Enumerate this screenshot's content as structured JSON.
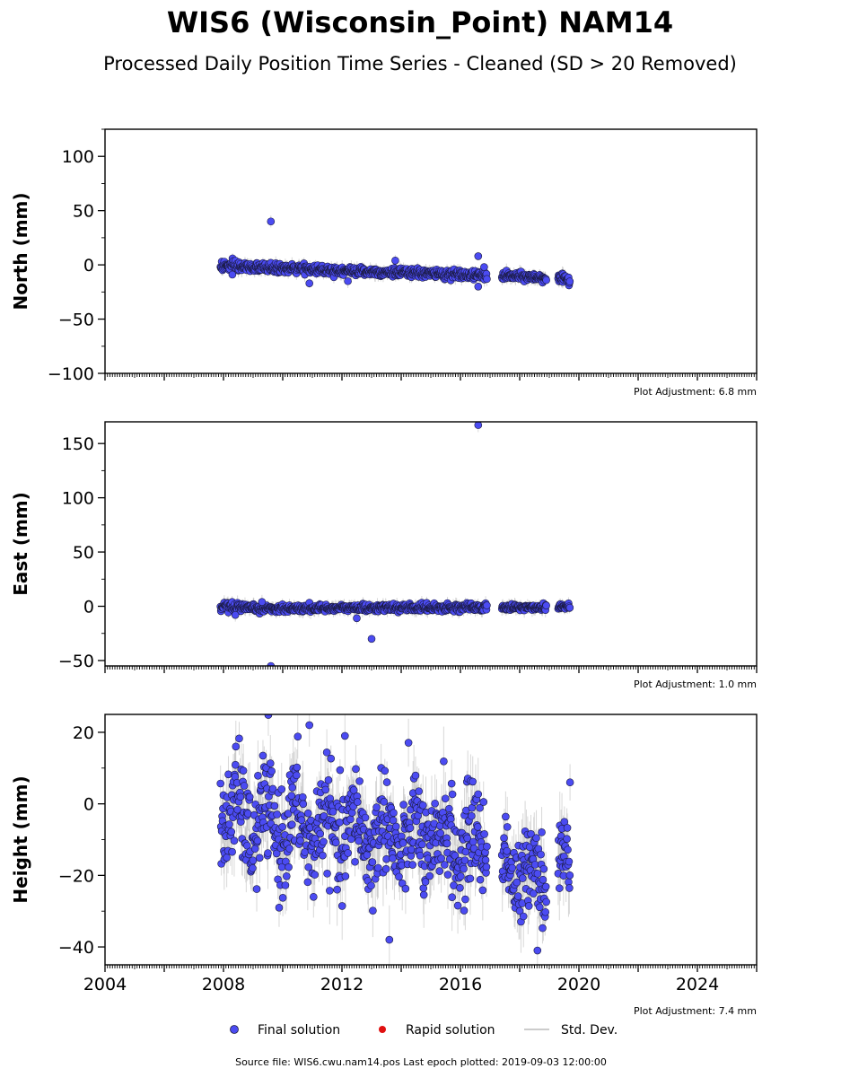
{
  "header": {
    "title": "WIS6 (Wisconsin_Point) NAM14",
    "subtitle": "Processed Daily Position Time Series - Cleaned (SD > 20 Removed)"
  },
  "footer": {
    "source": "Source file: WIS6.cwu.nam14.pos  Last epoch plotted: 2019-09-03 12:00:00"
  },
  "legend": {
    "position": "bottom-center",
    "items": [
      {
        "label": "Final solution",
        "color": "#4b4bf2",
        "marker": "circle"
      },
      {
        "label": "Rapid solution",
        "color": "#e01010",
        "marker": "circle"
      },
      {
        "label": "Std. Dev.",
        "color": "#bbbbbb",
        "marker": "line"
      }
    ]
  },
  "colors": {
    "final_fill": "#4b4bf2",
    "final_edge": "#1a1a40",
    "stddev": "#b8b8b8",
    "rapid": "#e01010"
  },
  "chart_data": [
    {
      "type": "scatter",
      "ylabel": "North (mm)",
      "xlim": [
        2004,
        2026
      ],
      "ylim": [
        -100,
        125
      ],
      "yticks": [
        -100,
        -50,
        0,
        50,
        100
      ],
      "xticks": [
        2004,
        2008,
        2012,
        2016,
        2020,
        2024
      ],
      "show_xtick_labels": false,
      "adjustment": "Plot Adjustment: 6.8 mm",
      "series": [
        {
          "segments": [
            {
              "start": 2007.9,
              "end": 2008.8,
              "y0": -1,
              "y1": -2,
              "noise": 2.5
            },
            {
              "start": 2008.8,
              "end": 2016.9,
              "y0": -2,
              "y1": -10,
              "noise": 2.0
            },
            {
              "start": 2017.4,
              "end": 2018.9,
              "y0": -10,
              "y1": -12,
              "noise": 1.8
            },
            {
              "start": 2019.3,
              "end": 2019.7,
              "y0": -13,
              "y1": -14,
              "noise": 2.0
            }
          ],
          "sd": 4,
          "outliers": [
            [
              2009.6,
              40
            ],
            [
              2010.9,
              -17
            ],
            [
              2012.2,
              -15
            ],
            [
              2013.8,
              4
            ],
            [
              2016.6,
              8
            ],
            [
              2016.8,
              -2
            ],
            [
              2016.6,
              -20
            ],
            [
              2008.3,
              -9
            ]
          ]
        }
      ]
    },
    {
      "type": "scatter",
      "ylabel": "East (mm)",
      "xlim": [
        2004,
        2026
      ],
      "ylim": [
        -55,
        170
      ],
      "yticks": [
        -50,
        0,
        50,
        100,
        150
      ],
      "xticks": [
        2004,
        2008,
        2012,
        2016,
        2020,
        2024
      ],
      "show_xtick_labels": false,
      "adjustment": "Plot Adjustment: 1.0 mm",
      "series": [
        {
          "segments": [
            {
              "start": 2007.9,
              "end": 2008.8,
              "y0": -1,
              "y1": -2,
              "noise": 2.0
            },
            {
              "start": 2008.8,
              "end": 2016.9,
              "y0": -2,
              "y1": -1,
              "noise": 1.6
            },
            {
              "start": 2017.4,
              "end": 2018.9,
              "y0": -1,
              "y1": -1,
              "noise": 1.5
            },
            {
              "start": 2019.3,
              "end": 2019.7,
              "y0": 0,
              "y1": 0,
              "noise": 1.5
            }
          ],
          "sd": 4,
          "outliers": [
            [
              2016.6,
              167
            ],
            [
              2013.0,
              -30
            ],
            [
              2009.6,
              -55
            ],
            [
              2012.5,
              -11
            ],
            [
              2008.4,
              -8
            ],
            [
              2009.3,
              4
            ]
          ]
        }
      ]
    },
    {
      "type": "scatter",
      "ylabel": "Height (mm)",
      "xlim": [
        2004,
        2026
      ],
      "ylim": [
        -45,
        25
      ],
      "yticks": [
        -40,
        -20,
        0,
        20
      ],
      "xticks": [
        2004,
        2008,
        2012,
        2016,
        2020,
        2024
      ],
      "show_xtick_labels": true,
      "adjustment": "Plot Adjustment: 7.4 mm",
      "series": [
        {
          "segments": [
            {
              "start": 2007.9,
              "end": 2008.8,
              "y0": -3,
              "y1": -5,
              "noise": 7.0
            },
            {
              "start": 2008.8,
              "end": 2016.9,
              "y0": -5,
              "y1": -12,
              "noise": 7.0
            },
            {
              "start": 2017.4,
              "end": 2018.9,
              "y0": -18,
              "y1": -20,
              "noise": 6.0
            },
            {
              "start": 2019.3,
              "end": 2019.7,
              "y0": -20,
              "y1": -20,
              "noise": 6.0
            }
          ],
          "sd": 6,
          "seasonal_amplitude": 6,
          "outliers": [
            [
              2010.9,
              22
            ],
            [
              2019.7,
              6
            ],
            [
              2013.6,
              -38
            ],
            [
              2018.6,
              -41
            ],
            [
              2012.1,
              19
            ]
          ]
        }
      ]
    }
  ]
}
